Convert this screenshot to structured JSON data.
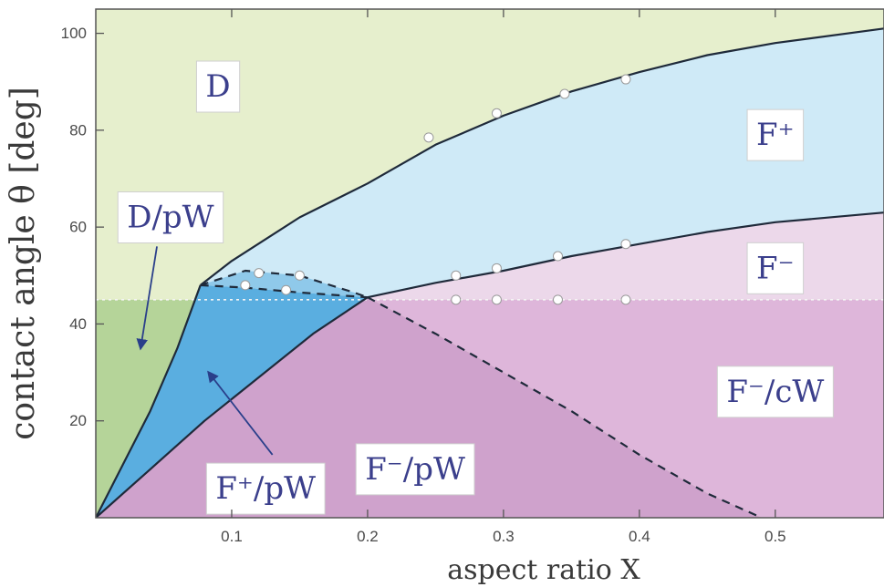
{
  "chart_data": {
    "type": "area",
    "xlabel": "aspect ratio X",
    "ylabel": "contact angle θ [deg]",
    "xlim": [
      0,
      0.58
    ],
    "ylim": [
      0,
      105
    ],
    "x_ticks": [
      0.1,
      0.2,
      0.3,
      0.4,
      0.5
    ],
    "y_ticks": [
      20,
      40,
      60,
      80,
      100
    ],
    "x_tick_labels": [
      "0.1",
      "0.2",
      "0.3",
      "0.4",
      "0.5"
    ],
    "y_tick_labels": [
      "20",
      "40",
      "60",
      "80",
      "100"
    ],
    "reference_angle": 45,
    "colors": {
      "D": "#e6efcd",
      "D_pW": "#b5d499",
      "F_plus": "#cfeaf7",
      "F_plus_pW": "#5aaee0",
      "F_minus": "#ecd8ea",
      "F_minus_cW": "#deb6da",
      "F_minus_pW": "#cfa2cc",
      "line": "#1f2a3a",
      "arrow": "#2a3f8a"
    },
    "series": [
      {
        "key": "upper_boundary",
        "style": "solid",
        "points": [
          [
            0.077,
            48
          ],
          [
            0.1,
            53
          ],
          [
            0.15,
            62
          ],
          [
            0.2,
            69
          ],
          [
            0.25,
            77
          ],
          [
            0.3,
            83
          ],
          [
            0.35,
            88
          ],
          [
            0.4,
            92
          ],
          [
            0.45,
            95.5
          ],
          [
            0.5,
            98
          ],
          [
            0.58,
            101
          ]
        ]
      },
      {
        "key": "middle_boundary",
        "style": "solid",
        "points": [
          [
            0.2,
            45.5
          ],
          [
            0.25,
            48.5
          ],
          [
            0.3,
            51
          ],
          [
            0.35,
            54
          ],
          [
            0.4,
            56.5
          ],
          [
            0.45,
            59
          ],
          [
            0.5,
            61
          ],
          [
            0.58,
            63
          ]
        ]
      },
      {
        "key": "lower_boundary",
        "style": "solid",
        "points": [
          [
            0,
            0
          ],
          [
            0.04,
            10
          ],
          [
            0.08,
            20
          ],
          [
            0.12,
            29
          ],
          [
            0.16,
            38
          ],
          [
            0.2,
            45.5
          ]
        ]
      },
      {
        "key": "left_boundary",
        "style": "solid",
        "points": [
          [
            0,
            0
          ],
          [
            0.02,
            11
          ],
          [
            0.04,
            22
          ],
          [
            0.06,
            35
          ],
          [
            0.077,
            48
          ]
        ]
      },
      {
        "key": "dashed_upper",
        "style": "dashed",
        "points": [
          [
            0.077,
            48
          ],
          [
            0.11,
            51
          ],
          [
            0.15,
            50
          ],
          [
            0.19,
            46.5
          ],
          [
            0.2,
            45.5
          ]
        ]
      },
      {
        "key": "dashed_lower",
        "style": "dashed",
        "points": [
          [
            0.077,
            48
          ],
          [
            0.11,
            47.5
          ],
          [
            0.15,
            46.5
          ],
          [
            0.2,
            45.5
          ]
        ]
      },
      {
        "key": "dashed_descending",
        "style": "dashed",
        "points": [
          [
            0.2,
            45.5
          ],
          [
            0.25,
            38
          ],
          [
            0.3,
            30
          ],
          [
            0.35,
            22
          ],
          [
            0.4,
            13
          ],
          [
            0.45,
            5
          ],
          [
            0.49,
            0
          ]
        ]
      }
    ],
    "markers": [
      {
        "x": 0.245,
        "y": 78.5
      },
      {
        "x": 0.295,
        "y": 83.5
      },
      {
        "x": 0.345,
        "y": 87.5
      },
      {
        "x": 0.39,
        "y": 90.5
      },
      {
        "x": 0.265,
        "y": 50
      },
      {
        "x": 0.295,
        "y": 51.5
      },
      {
        "x": 0.34,
        "y": 54
      },
      {
        "x": 0.39,
        "y": 56.5
      },
      {
        "x": 0.265,
        "y": 45
      },
      {
        "x": 0.295,
        "y": 45
      },
      {
        "x": 0.34,
        "y": 45
      },
      {
        "x": 0.39,
        "y": 45
      },
      {
        "x": 0.12,
        "y": 50.5
      },
      {
        "x": 0.15,
        "y": 50
      },
      {
        "x": 0.11,
        "y": 48
      },
      {
        "x": 0.14,
        "y": 47
      }
    ],
    "region_labels": [
      {
        "key": "D",
        "text": "D",
        "x": 0.09,
        "y": 89
      },
      {
        "key": "F_plus",
        "text": "F⁺",
        "x": 0.5,
        "y": 79
      },
      {
        "key": "D_pW",
        "text": "D/pW",
        "x": 0.055,
        "y": 62
      },
      {
        "key": "F_minus",
        "text": "F⁻",
        "x": 0.5,
        "y": 51.5
      },
      {
        "key": "F_minus_cW",
        "text": "F⁻/cW",
        "x": 0.5,
        "y": 26
      },
      {
        "key": "F_minus_pW",
        "text": "F⁻/pW",
        "x": 0.235,
        "y": 10
      },
      {
        "key": "F_plus_pW",
        "text": "F⁺/pW",
        "x": 0.125,
        "y": 6
      }
    ],
    "arrows": [
      {
        "from": [
          0.045,
          56
        ],
        "to": [
          0.033,
          35
        ]
      },
      {
        "from": [
          0.13,
          13
        ],
        "to": [
          0.083,
          30
        ]
      }
    ]
  }
}
